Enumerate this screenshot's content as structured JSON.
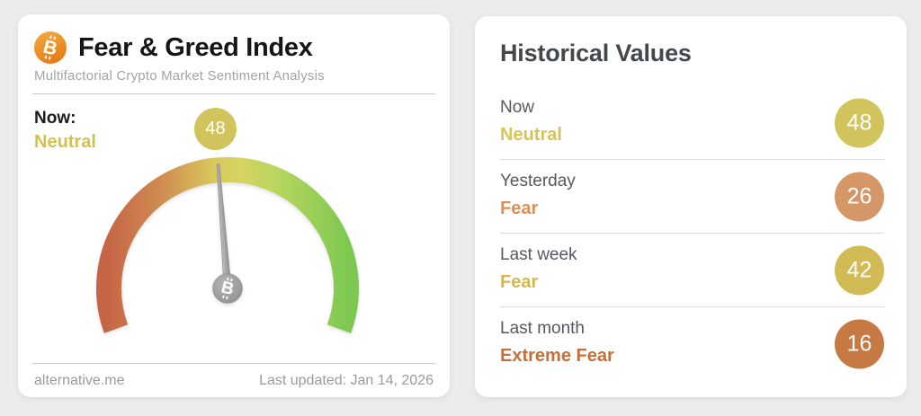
{
  "page_background": "#ececec",
  "fng_card": {
    "title": "Fear & Greed Index",
    "subtitle": "Multifactorial Crypto Market Sentiment Analysis",
    "now_label": "Now:",
    "now_classification": "Neutral",
    "now_value": "48",
    "accent_text_color": "#d2c14f",
    "badge_color": "#d1c45c",
    "footer_source": "alternative.me",
    "footer_updated": "Last updated: Jan 14, 2026"
  },
  "historical_card": {
    "title": "Historical Values",
    "rows": [
      {
        "label": "Now",
        "classification": "Neutral",
        "value": "48",
        "badge_color": "#d1c45c",
        "text_color": "#d6c554"
      },
      {
        "label": "Yesterday",
        "classification": "Fear",
        "value": "26",
        "badge_color": "#d59768",
        "text_color": "#de9059"
      },
      {
        "label": "Last week",
        "classification": "Fear",
        "value": "42",
        "badge_color": "#d2ba55",
        "text_color": "#d3b84e"
      },
      {
        "label": "Last month",
        "classification": "Extreme Fear",
        "value": "16",
        "badge_color": "#c67943",
        "text_color": "#c4703a"
      }
    ]
  },
  "chart_data": {
    "type": "gauge",
    "title": "Fear & Greed Index",
    "subtitle": "Multifactorial Crypto Market Sentiment Analysis",
    "value": 48,
    "classification": "Neutral",
    "range": [
      0,
      100
    ],
    "sweep_deg": 220,
    "gauge_gradient": [
      "#c66546",
      "#cf8a50",
      "#d9c95e",
      "#d6d360",
      "#b9d65e",
      "#7cc851"
    ],
    "needle_color": "#a2a2a2",
    "historical": [
      {
        "period": "Now",
        "value": 48,
        "classification": "Neutral"
      },
      {
        "period": "Yesterday",
        "value": 26,
        "classification": "Fear"
      },
      {
        "period": "Last week",
        "value": 42,
        "classification": "Fear"
      },
      {
        "period": "Last month",
        "value": 16,
        "classification": "Extreme Fear"
      }
    ],
    "source": "alternative.me",
    "last_updated": "Jan 14, 2026"
  }
}
